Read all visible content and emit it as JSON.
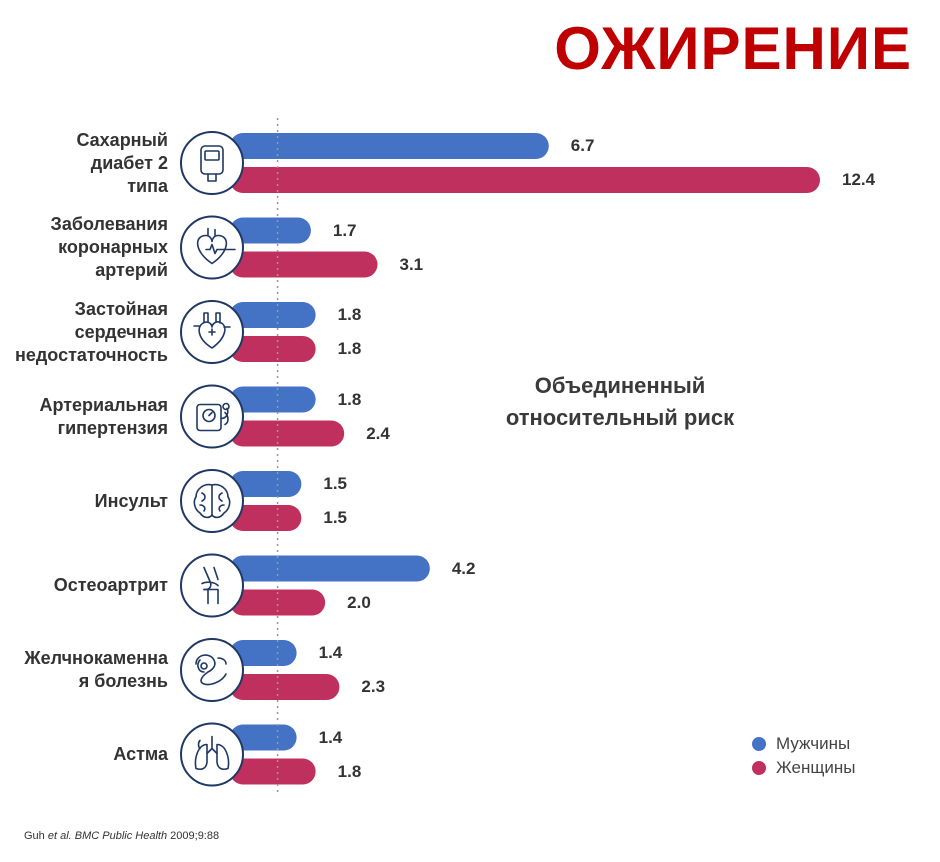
{
  "title": "ОЖИРЕНИЕ",
  "annotation": "Объединенный относительный риск",
  "source": {
    "authors": "Guh ",
    "etal": "et al.",
    "journal": "BMC Public Health",
    "ref": " 2009;9:88"
  },
  "colors": {
    "men": "#4472c4",
    "women": "#c0305e",
    "title": "#c00000",
    "icon_stroke": "#1f3864"
  },
  "chart_data": {
    "type": "bar",
    "orientation": "horizontal",
    "title": "ОЖИРЕНИЕ",
    "xlabel": "Объединенный относительный риск",
    "reference_line": 1,
    "grid": false,
    "legend_position": "bottom-right",
    "categories": [
      {
        "lines": [
          "Сахарный",
          "диабет 2",
          "типа"
        ],
        "icon": "glucometer-icon"
      },
      {
        "lines": [
          "Заболевания",
          "коронарных",
          "артерий"
        ],
        "icon": "heart-icon"
      },
      {
        "lines": [
          "Застойная",
          "сердечная",
          "недостаточность"
        ],
        "icon": "heart-vessels-icon"
      },
      {
        "lines": [
          "Артериальная",
          "гипертензия"
        ],
        "icon": "blood-pressure-monitor-icon"
      },
      {
        "lines": [
          "Инсульт"
        ],
        "icon": "brain-icon"
      },
      {
        "lines": [
          "Остеоартрит"
        ],
        "icon": "knee-joint-icon"
      },
      {
        "lines": [
          "Желчнокаменна",
          "я болезнь"
        ],
        "icon": "gallbladder-icon"
      },
      {
        "lines": [
          "Астма"
        ],
        "icon": "lungs-icon"
      }
    ],
    "series": [
      {
        "name": "Мужчины",
        "color": "#4472c4",
        "values": [
          6.7,
          1.7,
          1.8,
          1.8,
          1.5,
          4.2,
          1.4,
          1.4
        ],
        "labels": [
          "6.7",
          "1.7",
          "1.8",
          "1.8",
          "1.5",
          "4.2",
          "1.4",
          "1.4"
        ]
      },
      {
        "name": "Женщины",
        "color": "#c0305e",
        "values": [
          12.4,
          3.1,
          1.8,
          2.4,
          1.5,
          2.0,
          2.3,
          1.8
        ],
        "labels": [
          "12.4",
          "3.1",
          "1.8",
          "2.4",
          "1.5",
          "2.0",
          "2.3",
          "1.8"
        ]
      }
    ]
  }
}
